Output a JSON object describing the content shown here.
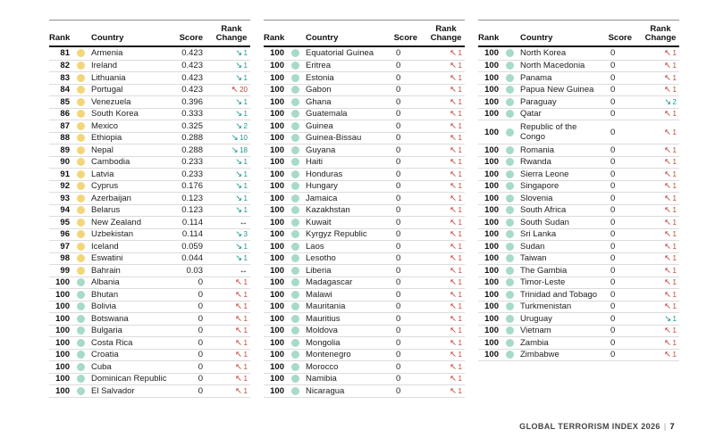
{
  "colors": {
    "dot_yellow": "#F2D678",
    "dot_mint": "#A7DAC7",
    "change_down": "#17988A",
    "change_up": "#C2453A",
    "change_same": "#1A1A1A"
  },
  "icons": {
    "down": "↘",
    "up": "↖",
    "same": "↔"
  },
  "header": {
    "rank": "Rank",
    "country": "Country",
    "score": "Score",
    "rank_change": "Rank Change"
  },
  "footer": {
    "title": "GLOBAL TERRORISM INDEX 2026",
    "separator": "|",
    "page": "7"
  },
  "tables": [
    {
      "rows": [
        {
          "rank": "81",
          "dot": "yellow",
          "country": "Armenia",
          "score": "0.423",
          "change": "down",
          "change_value": "1"
        },
        {
          "rank": "82",
          "dot": "yellow",
          "country": "Ireland",
          "score": "0.423",
          "change": "down",
          "change_value": "1"
        },
        {
          "rank": "83",
          "dot": "yellow",
          "country": "Lithuania",
          "score": "0.423",
          "change": "down",
          "change_value": "1"
        },
        {
          "rank": "84",
          "dot": "yellow",
          "country": "Portugal",
          "score": "0.423",
          "change": "up",
          "change_value": "20"
        },
        {
          "rank": "85",
          "dot": "yellow",
          "country": "Venezuela",
          "score": "0.396",
          "change": "down",
          "change_value": "1"
        },
        {
          "rank": "86",
          "dot": "yellow",
          "country": "South Korea",
          "score": "0.333",
          "change": "down",
          "change_value": "1"
        },
        {
          "rank": "87",
          "dot": "yellow",
          "country": "Mexico",
          "score": "0.325",
          "change": "down",
          "change_value": "2"
        },
        {
          "rank": "88",
          "dot": "yellow",
          "country": "Ethiopia",
          "score": "0.288",
          "change": "down",
          "change_value": "10"
        },
        {
          "rank": "89",
          "dot": "yellow",
          "country": "Nepal",
          "score": "0.288",
          "change": "down",
          "change_value": "18"
        },
        {
          "rank": "90",
          "dot": "yellow",
          "country": "Cambodia",
          "score": "0.233",
          "change": "down",
          "change_value": "1"
        },
        {
          "rank": "91",
          "dot": "yellow",
          "country": "Latvia",
          "score": "0.233",
          "change": "down",
          "change_value": "1"
        },
        {
          "rank": "92",
          "dot": "yellow",
          "country": "Cyprus",
          "score": "0.176",
          "change": "down",
          "change_value": "1"
        },
        {
          "rank": "93",
          "dot": "yellow",
          "country": "Azerbaijan",
          "score": "0.123",
          "change": "down",
          "change_value": "1"
        },
        {
          "rank": "94",
          "dot": "yellow",
          "country": "Belarus",
          "score": "0.123",
          "change": "down",
          "change_value": "1"
        },
        {
          "rank": "95",
          "dot": "yellow",
          "country": "New Zealand",
          "score": "0.114",
          "change": "same",
          "change_value": ""
        },
        {
          "rank": "96",
          "dot": "yellow",
          "country": "Uzbekistan",
          "score": "0.114",
          "change": "down",
          "change_value": "3"
        },
        {
          "rank": "97",
          "dot": "yellow",
          "country": "Iceland",
          "score": "0.059",
          "change": "down",
          "change_value": "1"
        },
        {
          "rank": "98",
          "dot": "yellow",
          "country": "Eswatini",
          "score": "0.044",
          "change": "down",
          "change_value": "1"
        },
        {
          "rank": "99",
          "dot": "yellow",
          "country": "Bahrain",
          "score": "0.03",
          "change": "same",
          "change_value": ""
        },
        {
          "rank": "100",
          "dot": "mint",
          "country": "Albania",
          "score": "0",
          "change": "up",
          "change_value": "1"
        },
        {
          "rank": "100",
          "dot": "mint",
          "country": "Bhutan",
          "score": "0",
          "change": "up",
          "change_value": "1"
        },
        {
          "rank": "100",
          "dot": "mint",
          "country": "Bolivia",
          "score": "0",
          "change": "up",
          "change_value": "1"
        },
        {
          "rank": "100",
          "dot": "mint",
          "country": "Botswana",
          "score": "0",
          "change": "up",
          "change_value": "1"
        },
        {
          "rank": "100",
          "dot": "mint",
          "country": "Bulgaria",
          "score": "0",
          "change": "up",
          "change_value": "1"
        },
        {
          "rank": "100",
          "dot": "mint",
          "country": "Costa Rica",
          "score": "0",
          "change": "up",
          "change_value": "1"
        },
        {
          "rank": "100",
          "dot": "mint",
          "country": "Croatia",
          "score": "0",
          "change": "up",
          "change_value": "1"
        },
        {
          "rank": "100",
          "dot": "mint",
          "country": "Cuba",
          "score": "0",
          "change": "up",
          "change_value": "1"
        },
        {
          "rank": "100",
          "dot": "mint",
          "country": "Dominican Republic",
          "score": "0",
          "change": "up",
          "change_value": "1"
        },
        {
          "rank": "100",
          "dot": "mint",
          "country": "El Salvador",
          "score": "0",
          "change": "up",
          "change_value": "1"
        }
      ]
    },
    {
      "rows": [
        {
          "rank": "100",
          "dot": "mint",
          "country": "Equatorial Guinea",
          "score": "0",
          "change": "up",
          "change_value": "1"
        },
        {
          "rank": "100",
          "dot": "mint",
          "country": "Eritrea",
          "score": "0",
          "change": "up",
          "change_value": "1"
        },
        {
          "rank": "100",
          "dot": "mint",
          "country": "Estonia",
          "score": "0",
          "change": "up",
          "change_value": "1"
        },
        {
          "rank": "100",
          "dot": "mint",
          "country": "Gabon",
          "score": "0",
          "change": "up",
          "change_value": "1"
        },
        {
          "rank": "100",
          "dot": "mint",
          "country": "Ghana",
          "score": "0",
          "change": "up",
          "change_value": "1"
        },
        {
          "rank": "100",
          "dot": "mint",
          "country": "Guatemala",
          "score": "0",
          "change": "up",
          "change_value": "1"
        },
        {
          "rank": "100",
          "dot": "mint",
          "country": "Guinea",
          "score": "0",
          "change": "up",
          "change_value": "1"
        },
        {
          "rank": "100",
          "dot": "mint",
          "country": "Guinea-Bissau",
          "score": "0",
          "change": "up",
          "change_value": "1"
        },
        {
          "rank": "100",
          "dot": "mint",
          "country": "Guyana",
          "score": "0",
          "change": "up",
          "change_value": "1"
        },
        {
          "rank": "100",
          "dot": "mint",
          "country": "Haiti",
          "score": "0",
          "change": "up",
          "change_value": "1"
        },
        {
          "rank": "100",
          "dot": "mint",
          "country": "Honduras",
          "score": "0",
          "change": "up",
          "change_value": "1"
        },
        {
          "rank": "100",
          "dot": "mint",
          "country": "Hungary",
          "score": "0",
          "change": "up",
          "change_value": "1"
        },
        {
          "rank": "100",
          "dot": "mint",
          "country": "Jamaica",
          "score": "0",
          "change": "up",
          "change_value": "1"
        },
        {
          "rank": "100",
          "dot": "mint",
          "country": "Kazakhstan",
          "score": "0",
          "change": "up",
          "change_value": "1"
        },
        {
          "rank": "100",
          "dot": "mint",
          "country": "Kuwait",
          "score": "0",
          "change": "up",
          "change_value": "1"
        },
        {
          "rank": "100",
          "dot": "mint",
          "country": "Kyrgyz Republic",
          "score": "0",
          "change": "up",
          "change_value": "1"
        },
        {
          "rank": "100",
          "dot": "mint",
          "country": "Laos",
          "score": "0",
          "change": "up",
          "change_value": "1"
        },
        {
          "rank": "100",
          "dot": "mint",
          "country": "Lesotho",
          "score": "0",
          "change": "up",
          "change_value": "1"
        },
        {
          "rank": "100",
          "dot": "mint",
          "country": "Liberia",
          "score": "0",
          "change": "up",
          "change_value": "1"
        },
        {
          "rank": "100",
          "dot": "mint",
          "country": "Madagascar",
          "score": "0",
          "change": "up",
          "change_value": "1"
        },
        {
          "rank": "100",
          "dot": "mint",
          "country": "Malawi",
          "score": "0",
          "change": "up",
          "change_value": "1"
        },
        {
          "rank": "100",
          "dot": "mint",
          "country": "Mauritania",
          "score": "0",
          "change": "up",
          "change_value": "1"
        },
        {
          "rank": "100",
          "dot": "mint",
          "country": "Mauritius",
          "score": "0",
          "change": "up",
          "change_value": "1"
        },
        {
          "rank": "100",
          "dot": "mint",
          "country": "Moldova",
          "score": "0",
          "change": "up",
          "change_value": "1"
        },
        {
          "rank": "100",
          "dot": "mint",
          "country": "Mongolia",
          "score": "0",
          "change": "up",
          "change_value": "1"
        },
        {
          "rank": "100",
          "dot": "mint",
          "country": "Montenegro",
          "score": "0",
          "change": "up",
          "change_value": "1"
        },
        {
          "rank": "100",
          "dot": "mint",
          "country": "Morocco",
          "score": "0",
          "change": "up",
          "change_value": "1"
        },
        {
          "rank": "100",
          "dot": "mint",
          "country": "Namibia",
          "score": "0",
          "change": "up",
          "change_value": "1"
        },
        {
          "rank": "100",
          "dot": "mint",
          "country": "Nicaragua",
          "score": "0",
          "change": "up",
          "change_value": "1"
        }
      ]
    },
    {
      "rows": [
        {
          "rank": "100",
          "dot": "mint",
          "country": "North Korea",
          "score": "0",
          "change": "up",
          "change_value": "1"
        },
        {
          "rank": "100",
          "dot": "mint",
          "country": "North Macedonia",
          "score": "0",
          "change": "up",
          "change_value": "1"
        },
        {
          "rank": "100",
          "dot": "mint",
          "country": "Panama",
          "score": "0",
          "change": "up",
          "change_value": "1"
        },
        {
          "rank": "100",
          "dot": "mint",
          "country": "Papua New Guinea",
          "score": "0",
          "change": "up",
          "change_value": "1"
        },
        {
          "rank": "100",
          "dot": "mint",
          "country": "Paraguay",
          "score": "0",
          "change": "down",
          "change_value": "2"
        },
        {
          "rank": "100",
          "dot": "mint",
          "country": "Qatar",
          "score": "0",
          "change": "up",
          "change_value": "1"
        },
        {
          "rank": "100",
          "dot": "mint",
          "country": "Republic of the\nCongo",
          "score": "0",
          "change": "up",
          "change_value": "1"
        },
        {
          "rank": "100",
          "dot": "mint",
          "country": "Romania",
          "score": "0",
          "change": "up",
          "change_value": "1"
        },
        {
          "rank": "100",
          "dot": "mint",
          "country": "Rwanda",
          "score": "0",
          "change": "up",
          "change_value": "1"
        },
        {
          "rank": "100",
          "dot": "mint",
          "country": "Sierra Leone",
          "score": "0",
          "change": "up",
          "change_value": "1"
        },
        {
          "rank": "100",
          "dot": "mint",
          "country": "Singapore",
          "score": "0",
          "change": "up",
          "change_value": "1"
        },
        {
          "rank": "100",
          "dot": "mint",
          "country": "Slovenia",
          "score": "0",
          "change": "up",
          "change_value": "1"
        },
        {
          "rank": "100",
          "dot": "mint",
          "country": "South Africa",
          "score": "0",
          "change": "up",
          "change_value": "1"
        },
        {
          "rank": "100",
          "dot": "mint",
          "country": "South Sudan",
          "score": "0",
          "change": "up",
          "change_value": "1"
        },
        {
          "rank": "100",
          "dot": "mint",
          "country": "Sri Lanka",
          "score": "0",
          "change": "up",
          "change_value": "1"
        },
        {
          "rank": "100",
          "dot": "mint",
          "country": "Sudan",
          "score": "0",
          "change": "up",
          "change_value": "1"
        },
        {
          "rank": "100",
          "dot": "mint",
          "country": "Taiwan",
          "score": "0",
          "change": "up",
          "change_value": "1"
        },
        {
          "rank": "100",
          "dot": "mint",
          "country": "The Gambia",
          "score": "0",
          "change": "up",
          "change_value": "1"
        },
        {
          "rank": "100",
          "dot": "mint",
          "country": "Timor-Leste",
          "score": "0",
          "change": "up",
          "change_value": "1"
        },
        {
          "rank": "100",
          "dot": "mint",
          "country": "Trinidad and Tobago",
          "score": "0",
          "change": "up",
          "change_value": "1"
        },
        {
          "rank": "100",
          "dot": "mint",
          "country": "Turkmenistan",
          "score": "0",
          "change": "up",
          "change_value": "1"
        },
        {
          "rank": "100",
          "dot": "mint",
          "country": "Uruguay",
          "score": "0",
          "change": "down",
          "change_value": "1"
        },
        {
          "rank": "100",
          "dot": "mint",
          "country": "Vietnam",
          "score": "0",
          "change": "up",
          "change_value": "1"
        },
        {
          "rank": "100",
          "dot": "mint",
          "country": "Zambia",
          "score": "0",
          "change": "up",
          "change_value": "1"
        },
        {
          "rank": "100",
          "dot": "mint",
          "country": "Zimbabwe",
          "score": "0",
          "change": "up",
          "change_value": "1"
        }
      ]
    }
  ]
}
